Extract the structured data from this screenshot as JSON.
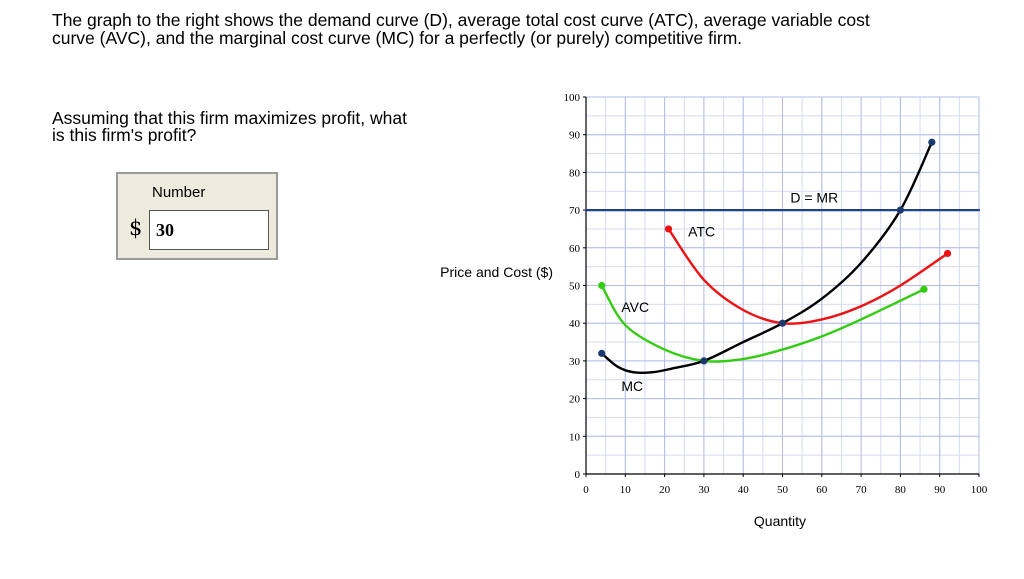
{
  "intro": {
    "line1": "The graph to the right shows the demand curve (D), average total cost curve (ATC),  average variable cost",
    "line2": "curve (AVC), and the marginal cost curve (MC) for a perfectly (or purely) competitive firm."
  },
  "question": {
    "line1": "Assuming that this firm maximizes profit, what",
    "line2": "is this firm's profit?"
  },
  "answer": {
    "label": "Number",
    "currency": "$",
    "value": "30"
  },
  "chart_data": {
    "type": "line",
    "xlabel": "Quantity",
    "ylabel": "Price and Cost ($)",
    "xlim": [
      0,
      100
    ],
    "ylim": [
      0,
      100
    ],
    "xticks": [
      0,
      10,
      20,
      30,
      40,
      50,
      60,
      70,
      80,
      90,
      100
    ],
    "yticks": [
      0,
      10,
      20,
      30,
      40,
      50,
      60,
      70,
      80,
      90,
      100
    ],
    "grid": true,
    "series": [
      {
        "name": "D = MR",
        "color": "#1f3f8f",
        "x": [
          0,
          100
        ],
        "y": [
          70,
          70
        ],
        "markers": false
      },
      {
        "name": "ATC",
        "color": "#ee1111",
        "x": [
          21,
          30,
          40,
          50,
          60,
          70,
          80,
          92
        ],
        "y": [
          65,
          51.5,
          43.5,
          40,
          41,
          44.5,
          50,
          58.5
        ],
        "marker_points": [
          [
            21,
            65
          ],
          [
            92,
            58.5
          ]
        ]
      },
      {
        "name": "AVC",
        "color": "#33cc11",
        "x": [
          4,
          10,
          20,
          30,
          40,
          50,
          60,
          70,
          86
        ],
        "y": [
          50,
          39.5,
          33,
          30,
          30.5,
          33,
          36.5,
          41,
          49
        ],
        "marker_points": [
          [
            4,
            50
          ],
          [
            86,
            49
          ]
        ]
      },
      {
        "name": "MC",
        "color": "#000000",
        "x": [
          4,
          8,
          12,
          17,
          22,
          30,
          40,
          50,
          60,
          70,
          80,
          88
        ],
        "y": [
          32,
          28.5,
          27,
          27,
          28,
          30,
          35,
          40,
          46.5,
          56,
          70,
          88
        ],
        "marker_points": [
          [
            4,
            32
          ],
          [
            30,
            30
          ],
          [
            50,
            40
          ],
          [
            80,
            70
          ],
          [
            88,
            88
          ]
        ]
      }
    ],
    "annotations": [
      {
        "text": "D = MR",
        "x": 52,
        "y": 72
      },
      {
        "text": "ATC",
        "x": 26,
        "y": 63
      },
      {
        "text": "AVC",
        "x": 9,
        "y": 43
      },
      {
        "text": "MC",
        "x": 9,
        "y": 22
      }
    ],
    "point_color": "#1a3a6e"
  }
}
